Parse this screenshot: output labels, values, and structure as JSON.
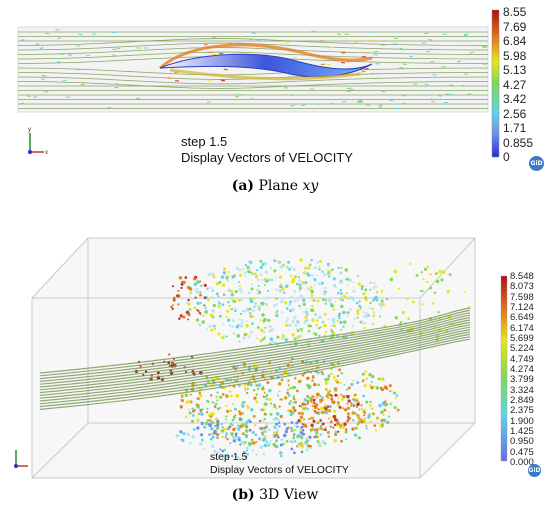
{
  "panel_a": {
    "caption_letter": "(a)",
    "caption_text": "Plane",
    "caption_math": "xy",
    "step": "step 1.5",
    "display": "Display Vectors of VELOCITY",
    "legend": [
      "8.55",
      "7.69",
      "6.84",
      "5.98",
      "5.13",
      "4.27",
      "3.42",
      "2.56",
      "1.71",
      "0.855",
      "0"
    ],
    "badge": "GiD"
  },
  "panel_b": {
    "caption_letter": "(b)",
    "caption_text": "3D View",
    "step": "step 1.5",
    "display": "Display Vectors of VELOCITY",
    "legend": [
      "8.548",
      "8.073",
      "7.598",
      "7.124",
      "6.649",
      "6.174",
      "5.699",
      "5.224",
      "4.749",
      "4.274",
      "3.799",
      "3.324",
      "2.849",
      "2.375",
      "1.900",
      "1.425",
      "0.950",
      "0.475",
      "0.000"
    ],
    "badge": "GiD"
  },
  "colors": {
    "streamline": "#7d9a5a",
    "box": "#c8c8c8",
    "high": "#c0392b",
    "mid": "#e6e619",
    "low": "#5fd4e8",
    "zero": "#2a2ad8"
  }
}
